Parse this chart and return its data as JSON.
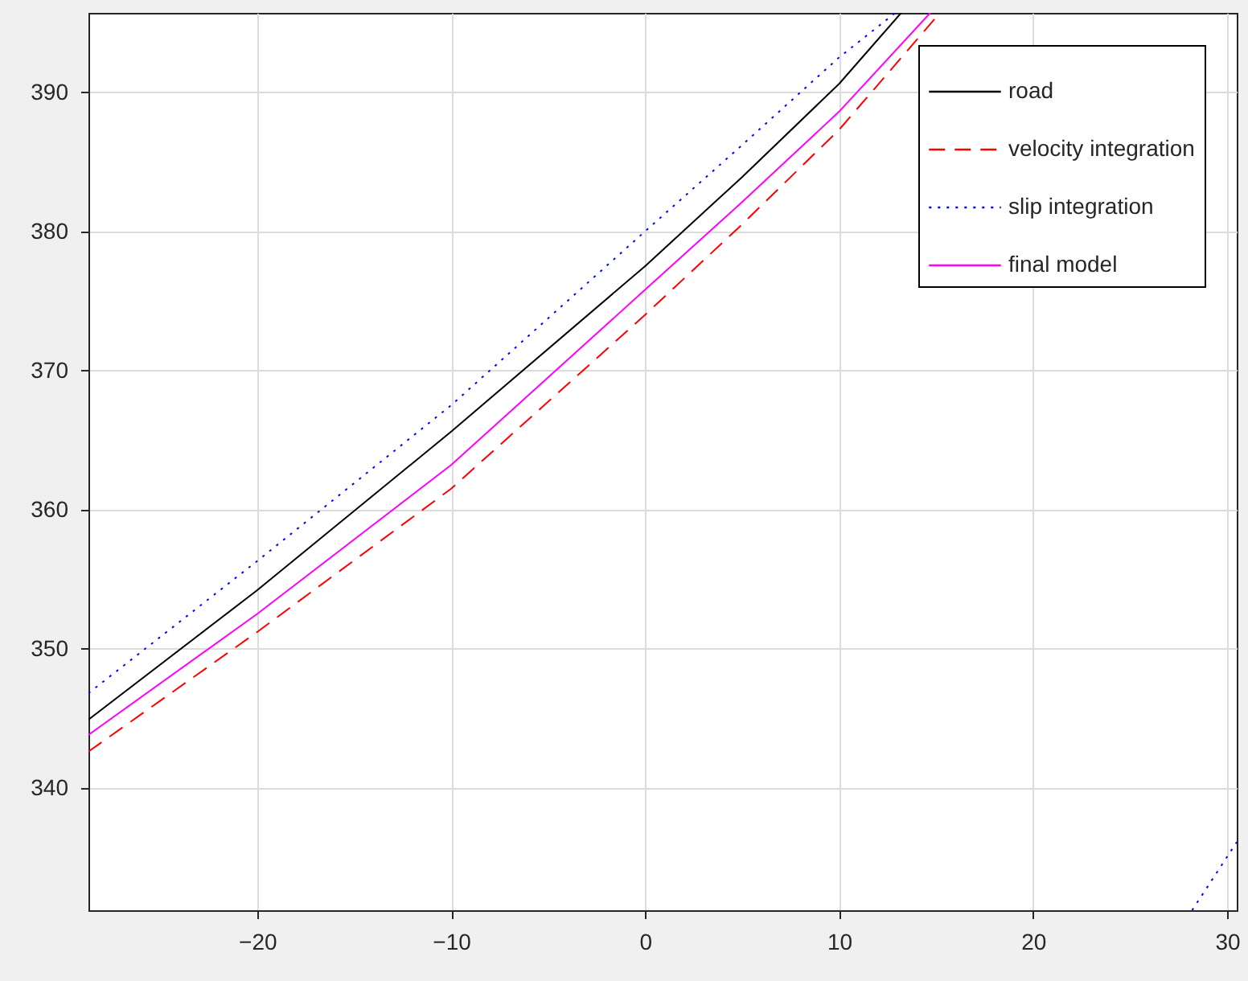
{
  "chart_data": {
    "type": "line",
    "xlim": [
      -28.7,
      30.5
    ],
    "ylim": [
      331.2,
      395.7
    ],
    "xticks": [
      -20,
      -10,
      0,
      10,
      20,
      30
    ],
    "yticks": [
      340,
      350,
      360,
      370,
      380,
      390
    ],
    "grid": true,
    "legend": "top right",
    "series": [
      {
        "name": "road",
        "color": "#000000",
        "line_style": "solid",
        "x": [
          -28.7,
          -20,
          -10,
          0,
          5,
          10,
          13.2
        ],
        "values": [
          344.9,
          354.2,
          365.6,
          377.5,
          383.9,
          390.6,
          395.7
        ]
      },
      {
        "name": "velocity integration",
        "color": "#ff0000",
        "line_style": "dashed",
        "x": [
          -28.7,
          -20,
          -10,
          0,
          5,
          10,
          15.2
        ],
        "values": [
          342.6,
          351.2,
          361.5,
          374.0,
          380.5,
          387.3,
          395.7
        ]
      },
      {
        "name": "slip integration",
        "color": "#0000ff",
        "line_style": "dotted",
        "x": [
          -28.7,
          -20,
          -10,
          0,
          5,
          10,
          12.9,
          20,
          28.2,
          30.5
        ],
        "values": [
          346.8,
          356.3,
          367.5,
          380.0,
          386.2,
          392.5,
          395.7,
          null,
          331.2,
          336.1
        ]
      },
      {
        "name": "final model",
        "color": "#ff00ff",
        "line_style": "solid",
        "x": [
          -28.7,
          -20,
          -10,
          0,
          5,
          10,
          14.7
        ],
        "values": [
          343.8,
          352.5,
          363.2,
          375.8,
          382.1,
          388.6,
          395.7
        ]
      }
    ]
  }
}
